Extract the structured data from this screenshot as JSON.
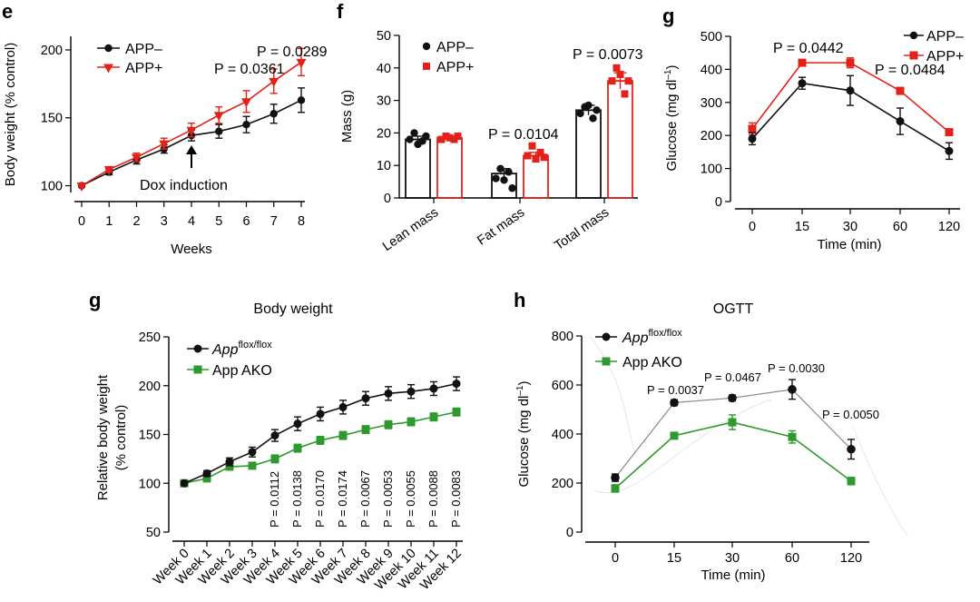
{
  "colors": {
    "black": "#111111",
    "red": "#e32119",
    "green": "#2e9a2e",
    "gray": "#888888"
  },
  "chart_data": [
    {
      "id": "e",
      "panel_label": "e",
      "type": "line",
      "xlabel": "Weeks",
      "ylabel": "Body weight (% control)",
      "x": [
        0,
        1,
        2,
        3,
        4,
        5,
        6,
        7,
        8
      ],
      "ylim": [
        95,
        210
      ],
      "yticks": [
        100,
        150,
        200
      ],
      "series": [
        {
          "name": "APP–",
          "color": "#111111",
          "marker": "circle",
          "values": [
            100,
            110,
            119,
            127,
            137,
            140,
            145,
            153,
            163
          ],
          "errors": [
            1,
            2,
            3,
            3,
            4,
            5,
            6,
            7,
            9
          ]
        },
        {
          "name": "APP+",
          "color": "#e32119",
          "marker": "triangle-down",
          "values": [
            100,
            112,
            121,
            131,
            141,
            152,
            162,
            177,
            191
          ],
          "errors": [
            1,
            2,
            3,
            4,
            5,
            6,
            8,
            9,
            10
          ]
        }
      ],
      "annotations": [
        {
          "text": "P = 0.0289"
        },
        {
          "text": "P = 0.0361"
        },
        {
          "text": "Dox induction"
        }
      ]
    },
    {
      "id": "f",
      "panel_label": "f",
      "type": "bar",
      "ylabel": "Mass (g)",
      "categories": [
        "Lean mass",
        "Fat mass",
        "Total mass"
      ],
      "ylim": [
        0,
        50
      ],
      "yticks": [
        0,
        10,
        20,
        30,
        40,
        50
      ],
      "series": [
        {
          "name": "APP–",
          "color": "#111111",
          "values": [
            18,
            7.5,
            27
          ],
          "errors": [
            1,
            1.5,
            1.5
          ],
          "points": [
            [
              18,
              20,
              16.5,
              17.5,
              19
            ],
            [
              6,
              9,
              5.5,
              8,
              3
            ],
            [
              26,
              28,
              28.5,
              24.5,
              27
            ]
          ]
        },
        {
          "name": "APP+",
          "color": "#e32119",
          "values": [
            18.5,
            13,
            36
          ],
          "errors": [
            0.5,
            1,
            2.5
          ],
          "points": [
            [
              18,
              19,
              18.5,
              18,
              19
            ],
            [
              13,
              16,
              12,
              14,
              12.5
            ],
            [
              36,
              40,
              38,
              32,
              36
            ]
          ]
        }
      ],
      "annotations": [
        {
          "text": "P = 0.0104"
        },
        {
          "text": "P = 0.0073"
        }
      ]
    },
    {
      "id": "g1",
      "panel_label": "g",
      "type": "line",
      "xlabel": "Time (min)",
      "ylabel": "Glucose (mg dl",
      "ylabel_sup": "–1",
      "ylabel_close": ")",
      "x": [
        "0",
        "15",
        "30",
        "60",
        "120"
      ],
      "ylim": [
        0,
        500
      ],
      "yticks": [
        0,
        100,
        200,
        300,
        400,
        500
      ],
      "series": [
        {
          "name": "APP–",
          "color": "#111111",
          "marker": "circle",
          "values": [
            190,
            358,
            336,
            243,
            153
          ],
          "errors": [
            18,
            18,
            45,
            40,
            25
          ]
        },
        {
          "name": "APP+",
          "color": "#e32119",
          "marker": "square",
          "values": [
            220,
            420,
            420,
            335,
            210
          ],
          "errors": [
            18,
            8,
            15,
            8,
            8
          ]
        }
      ],
      "annotations": [
        {
          "text": "P = 0.0442"
        },
        {
          "text": "P = 0.0484"
        }
      ]
    },
    {
      "id": "g2",
      "panel_label": "g",
      "type": "line",
      "title": "Body weight",
      "ylabel": "Relative body weight",
      "ylabel2": "(% control)",
      "x": [
        "Week 0",
        "Week 1",
        "Week 2",
        "Week 3",
        "Week 4",
        "Week 5",
        "Week 6",
        "Week 7",
        "Week 8",
        "Week 9",
        "Week 10",
        "Week 11",
        "Week 12"
      ],
      "ylim": [
        50,
        250
      ],
      "yticks": [
        50,
        100,
        150,
        200,
        250
      ],
      "series": [
        {
          "name": "App",
          "name_sup": "flox/flox",
          "color": "#111111",
          "marker": "circle",
          "values": [
            100,
            110,
            122,
            132,
            149,
            161,
            171,
            178,
            187,
            192,
            194,
            197,
            202
          ],
          "errors": [
            2,
            3,
            4,
            5,
            6,
            7,
            7,
            7,
            7,
            7,
            7,
            7,
            7
          ]
        },
        {
          "name": "App AKO",
          "color": "#2e9a2e",
          "marker": "square",
          "values": [
            100,
            105,
            117,
            118,
            125,
            136,
            144,
            149,
            155,
            160,
            163,
            168,
            173
          ],
          "errors": [
            2,
            2,
            3,
            3,
            4,
            4,
            4,
            4,
            4,
            4,
            4,
            4,
            4
          ]
        }
      ],
      "annotations": [
        "P = 0.0112",
        "P = 0.0138",
        "P = 0.0170",
        "P = 0.0174",
        "P = 0.0067",
        "P = 0.0053",
        "P = 0.0055",
        "P = 0.0088",
        "P = 0.0083"
      ]
    },
    {
      "id": "h",
      "panel_label": "h",
      "type": "line",
      "title": "OGTT",
      "xlabel": "Time (min)",
      "ylabel": "Glucose (mg dl",
      "ylabel_sup": "–1",
      "ylabel_close": ")",
      "x": [
        "0",
        "15",
        "30",
        "60",
        "120"
      ],
      "ylim": [
        0,
        800
      ],
      "yticks": [
        0,
        200,
        400,
        600,
        800
      ],
      "series": [
        {
          "name": "App",
          "name_sup": "flox/flox",
          "color": "#111111",
          "marker": "circle",
          "values": [
            222,
            528,
            547,
            582,
            338
          ],
          "errors": [
            15,
            12,
            12,
            40,
            40
          ]
        },
        {
          "name": "App AKO",
          "color": "#2e9a2e",
          "marker": "square",
          "values": [
            178,
            393,
            448,
            388,
            208
          ],
          "errors": [
            15,
            12,
            30,
            25,
            15
          ]
        }
      ],
      "annotations": [
        {
          "text": "P = 0.0037"
        },
        {
          "text": "P = 0.0467"
        },
        {
          "text": "P = 0.0030"
        },
        {
          "text": "P = 0.0050"
        }
      ]
    }
  ]
}
